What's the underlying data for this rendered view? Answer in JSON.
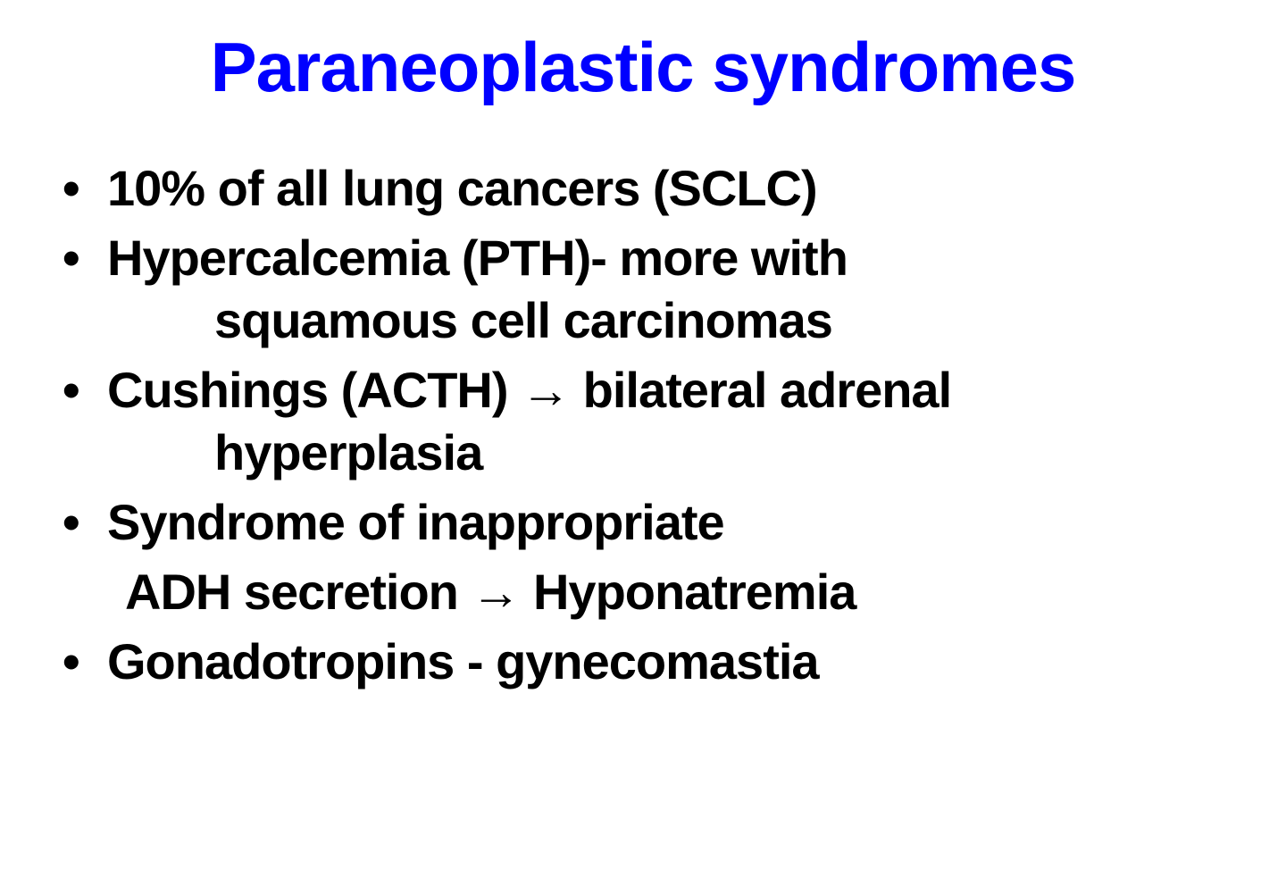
{
  "slide": {
    "title": "Paraneoplastic syndromes",
    "title_color": "#0000ff",
    "text_color": "#000000",
    "background_color": "#ffffff",
    "title_fontsize": 78,
    "body_fontsize": 56,
    "bullets": [
      {
        "text": "10% of all lung cancers (SCLC)",
        "continuation": null
      },
      {
        "text": "Hypercalcemia (PTH)- more with",
        "continuation": "squamous cell carcinomas"
      },
      {
        "text": "Cushings (ACTH) → bilateral adrenal",
        "continuation": "hyperplasia"
      },
      {
        "text": "Syndrome of inappropriate",
        "continuation": null
      },
      {
        "text_nobullet": "ADH secretion → Hyponatremia"
      },
      {
        "text": "Gonadotropins - gynecomastia",
        "continuation": null
      }
    ]
  }
}
